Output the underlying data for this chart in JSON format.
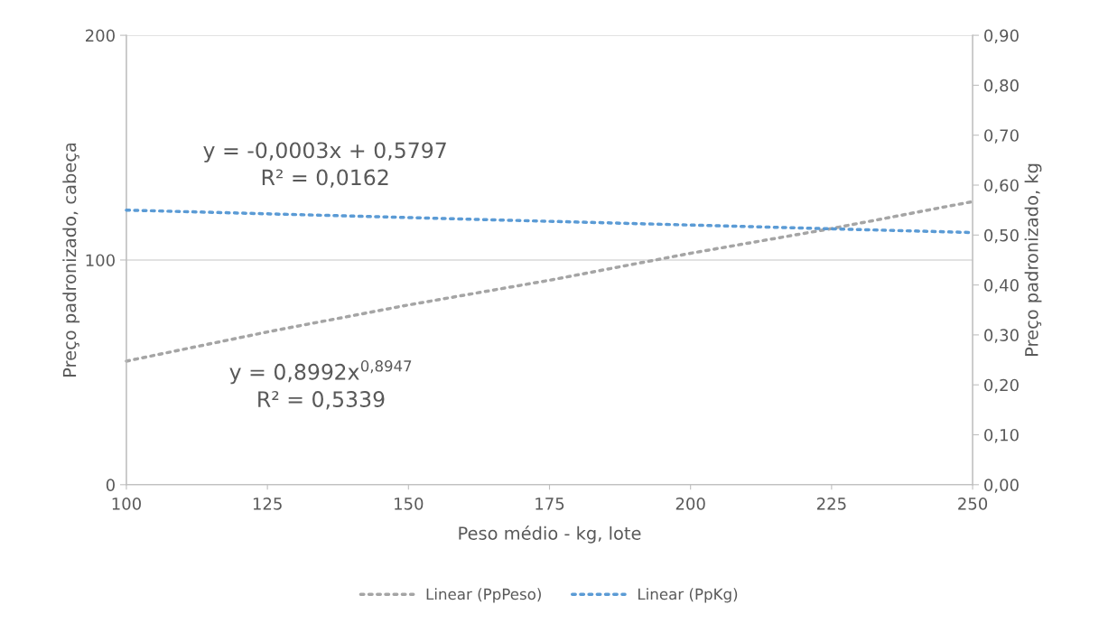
{
  "chart_data": {
    "type": "line",
    "xlabel": "Peso médio - kg, lote",
    "ylabel": "Preço padronizado, cabeça",
    "y2label": "Preço padronizado, kg",
    "series": [
      {
        "name": "Linear (PpPeso)",
        "color": "#a5a5a5",
        "x": [
          100,
          125,
          150,
          175,
          200,
          225,
          250
        ],
        "values": [
          55,
          68,
          80,
          91,
          103,
          114,
          126
        ]
      },
      {
        "name": "Linear (PpKg)",
        "color": "#5b9bd5",
        "x": [
          100,
          250
        ],
        "values": [
          0.55,
          0.505
        ],
        "axis": "y2"
      }
    ],
    "xlim": [
      100,
      250
    ],
    "xticks": [
      100,
      125,
      150,
      175,
      200,
      225,
      250
    ],
    "ylim": [
      0,
      200
    ],
    "yticks": [
      0,
      100,
      200
    ],
    "y2lim": [
      0,
      0.9
    ],
    "y2ticks": [
      {
        "value": 0,
        "label": "0,00"
      },
      {
        "value": 0.1,
        "label": "0,10"
      },
      {
        "value": 0.2,
        "label": "0,20"
      },
      {
        "value": 0.3,
        "label": "0,30"
      },
      {
        "value": 0.4,
        "label": "0,40"
      },
      {
        "value": 0.5,
        "label": "0,50"
      },
      {
        "value": 0.6,
        "label": "0,60"
      },
      {
        "value": 0.7,
        "label": "0,70"
      },
      {
        "value": 0.8,
        "label": "0,80"
      },
      {
        "value": 0.9,
        "label": "0,90"
      }
    ],
    "annotations": [
      "y = -0,0003x + 0,5797\nR² = 0,0162",
      "y = 0,8992x$^{0,8947}$\nR² = 0,5339"
    ],
    "grid": "y",
    "legend": "bottom",
    "marker": "none",
    "line_style": "dotted"
  }
}
